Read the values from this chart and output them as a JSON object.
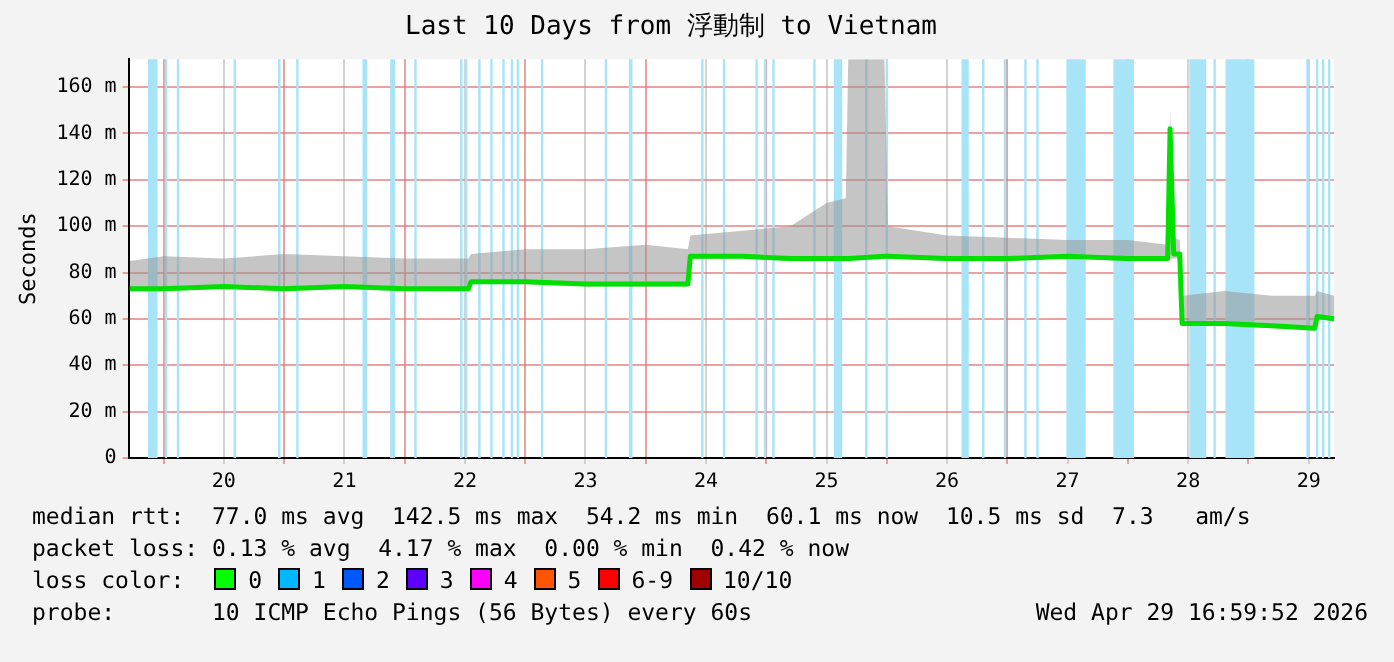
{
  "chart_data": {
    "type": "line",
    "title": "Last 10 Days from 浮動制 to Vietnam",
    "ylabel": "Seconds",
    "marker": "none",
    "grid": true,
    "legend": false,
    "xlim": [
      19.71,
      29.71
    ],
    "xticks": [
      {
        "value": 20,
        "label": null
      },
      {
        "value": 20.5,
        "label": "20"
      },
      {
        "value": 21,
        "label": null
      },
      {
        "value": 21.5,
        "label": "21"
      },
      {
        "value": 22,
        "label": null
      },
      {
        "value": 22.5,
        "label": "22"
      },
      {
        "value": 23,
        "label": null
      },
      {
        "value": 23.5,
        "label": "23"
      },
      {
        "value": 24,
        "label": null
      },
      {
        "value": 24.5,
        "label": "24"
      },
      {
        "value": 25,
        "label": null
      },
      {
        "value": 25.5,
        "label": "25"
      },
      {
        "value": 26,
        "label": null
      },
      {
        "value": 26.5,
        "label": "26"
      },
      {
        "value": 27,
        "label": null
      },
      {
        "value": 27.5,
        "label": "27"
      },
      {
        "value": 28,
        "label": null
      },
      {
        "value": 28.5,
        "label": "28"
      },
      {
        "value": 29,
        "label": null
      },
      {
        "value": 29.5,
        "label": "29"
      }
    ],
    "ylim": [
      0,
      172
    ],
    "yticks": [
      0,
      {
        "value": 20,
        "label": "20 m"
      },
      {
        "value": 40,
        "label": "40 m"
      },
      {
        "value": 60,
        "label": "60 m"
      },
      {
        "value": 80,
        "label": "80 m"
      },
      {
        "value": 100,
        "label": "100 m"
      },
      {
        "value": 120,
        "label": "120 m"
      },
      {
        "value": 140,
        "label": "140 m"
      },
      {
        "value": 160,
        "label": "160 m"
      }
    ],
    "x": [
      19.72,
      20.0,
      20.5,
      21.0,
      21.5,
      22.0,
      22.53,
      22.55,
      23.0,
      23.5,
      24.0,
      24.35,
      24.37,
      24.8,
      25.2,
      25.5,
      25.66,
      25.68,
      25.98,
      26.01,
      26.5,
      27.0,
      27.5,
      28.0,
      28.33,
      28.35,
      28.38,
      28.43,
      28.45,
      28.8,
      29.2,
      29.55,
      29.57,
      29.71
    ],
    "series": [
      {
        "color": "#00e000",
        "values": [
          73,
          73,
          74,
          73,
          74,
          73,
          73,
          76,
          76,
          75,
          75,
          75,
          87,
          87,
          86,
          86,
          86,
          86,
          87,
          87,
          86,
          86,
          87,
          86,
          86,
          142,
          88,
          88,
          58,
          58,
          57,
          56,
          61,
          60
        ],
        "lower": [
          72,
          72,
          73,
          72,
          73,
          72,
          72,
          75,
          75,
          74,
          74,
          74,
          86,
          86,
          85,
          85,
          85,
          85,
          86,
          86,
          85,
          85,
          86,
          85,
          85,
          86,
          86,
          86,
          57,
          57,
          56,
          55,
          60,
          59
        ],
        "upper": [
          85,
          87,
          86,
          88,
          87,
          86,
          86,
          88,
          90,
          90,
          92,
          90,
          96,
          98,
          100,
          110,
          112,
          172,
          172,
          100,
          96,
          95,
          94,
          94,
          92,
          150,
          95,
          94,
          70,
          72,
          70,
          70,
          72,
          70
        ]
      }
    ],
    "bands": [
      {
        "axis": "x",
        "from": 19.87,
        "to": 19.95,
        "color": "#a8e4f8"
      },
      {
        "axis": "x",
        "from": 20.01,
        "to": 20.03,
        "color": "#a8e4f8"
      },
      {
        "axis": "x",
        "from": 20.11,
        "to": 20.13,
        "color": "#a8e4f8"
      },
      {
        "axis": "x",
        "from": 20.58,
        "to": 20.6,
        "color": "#a8e4f8"
      },
      {
        "axis": "x",
        "from": 20.95,
        "to": 20.97,
        "color": "#a8e4f8"
      },
      {
        "axis": "x",
        "from": 21.1,
        "to": 21.12,
        "color": "#a8e4f8"
      },
      {
        "axis": "x",
        "from": 21.65,
        "to": 21.69,
        "color": "#a8e4f8"
      },
      {
        "axis": "x",
        "from": 21.88,
        "to": 21.92,
        "color": "#a8e4f8"
      },
      {
        "axis": "x",
        "from": 22.08,
        "to": 22.1,
        "color": "#a8e4f8"
      },
      {
        "axis": "x",
        "from": 22.46,
        "to": 22.48,
        "color": "#a8e4f8"
      },
      {
        "axis": "x",
        "from": 22.5,
        "to": 22.52,
        "color": "#a8e4f8"
      },
      {
        "axis": "x",
        "from": 22.61,
        "to": 22.63,
        "color": "#a8e4f8"
      },
      {
        "axis": "x",
        "from": 22.71,
        "to": 22.73,
        "color": "#a8e4f8"
      },
      {
        "axis": "x",
        "from": 22.81,
        "to": 22.83,
        "color": "#a8e4f8"
      },
      {
        "axis": "x",
        "from": 22.88,
        "to": 22.9,
        "color": "#a8e4f8"
      },
      {
        "axis": "x",
        "from": 22.93,
        "to": 22.95,
        "color": "#a8e4f8"
      },
      {
        "axis": "x",
        "from": 23.13,
        "to": 23.15,
        "color": "#a8e4f8"
      },
      {
        "axis": "x",
        "from": 23.66,
        "to": 23.68,
        "color": "#a8e4f8"
      },
      {
        "axis": "x",
        "from": 23.86,
        "to": 23.89,
        "color": "#a8e4f8"
      },
      {
        "axis": "x",
        "from": 24.46,
        "to": 24.48,
        "color": "#a8e4f8"
      },
      {
        "axis": "x",
        "from": 24.64,
        "to": 24.66,
        "color": "#a8e4f8"
      },
      {
        "axis": "x",
        "from": 24.91,
        "to": 24.93,
        "color": "#a8e4f8"
      },
      {
        "axis": "x",
        "from": 24.98,
        "to": 25.0,
        "color": "#a8e4f8"
      },
      {
        "axis": "x",
        "from": 25.05,
        "to": 25.07,
        "color": "#a8e4f8"
      },
      {
        "axis": "x",
        "from": 25.39,
        "to": 25.41,
        "color": "#a8e4f8"
      },
      {
        "axis": "x",
        "from": 25.56,
        "to": 25.63,
        "color": "#a8e4f8"
      },
      {
        "axis": "x",
        "from": 25.82,
        "to": 25.84,
        "color": "#a8e4f8"
      },
      {
        "axis": "x",
        "from": 25.99,
        "to": 26.01,
        "color": "#a8e4f8"
      },
      {
        "axis": "x",
        "from": 26.62,
        "to": 26.68,
        "color": "#a8e4f8"
      },
      {
        "axis": "x",
        "from": 26.79,
        "to": 26.81,
        "color": "#a8e4f8"
      },
      {
        "axis": "x",
        "from": 26.97,
        "to": 26.99,
        "color": "#a8e4f8"
      },
      {
        "axis": "x",
        "from": 27.14,
        "to": 27.16,
        "color": "#a8e4f8"
      },
      {
        "axis": "x",
        "from": 27.24,
        "to": 27.26,
        "color": "#a8e4f8"
      },
      {
        "axis": "x",
        "from": 27.49,
        "to": 27.65,
        "color": "#a8e4f8"
      },
      {
        "axis": "x",
        "from": 27.88,
        "to": 28.05,
        "color": "#a8e4f8"
      },
      {
        "axis": "x",
        "from": 28.51,
        "to": 28.65,
        "color": "#a8e4f8"
      },
      {
        "axis": "x",
        "from": 28.71,
        "to": 28.73,
        "color": "#a8e4f8"
      },
      {
        "axis": "x",
        "from": 28.81,
        "to": 29.05,
        "color": "#a8e4f8"
      },
      {
        "axis": "x",
        "from": 29.48,
        "to": 29.5,
        "color": "#a8e4f8"
      },
      {
        "axis": "x",
        "from": 29.56,
        "to": 29.58,
        "color": "#a8e4f8"
      },
      {
        "axis": "x",
        "from": 29.61,
        "to": 29.63,
        "color": "#a8e4f8"
      },
      {
        "axis": "x",
        "from": 29.66,
        "to": 29.68,
        "color": "#a8e4f8"
      }
    ],
    "annotations": [
      "median rtt:  77.0 ms avg  142.5 ms max  54.2 ms min  60.1 ms now  10.5 ms sd  7.3   am/s",
      "packet loss: 0.13 % avg  4.17 % max  0.00 % min  0.42 % now",
      "loss color:",
      "0",
      "1",
      "2",
      "3",
      "4",
      "5",
      "6-9",
      "10/10",
      "probe:       10 ICMP Echo Pings (56 Bytes) every 60s",
      "Wed Apr 29 16:59:52 2026"
    ]
  }
}
